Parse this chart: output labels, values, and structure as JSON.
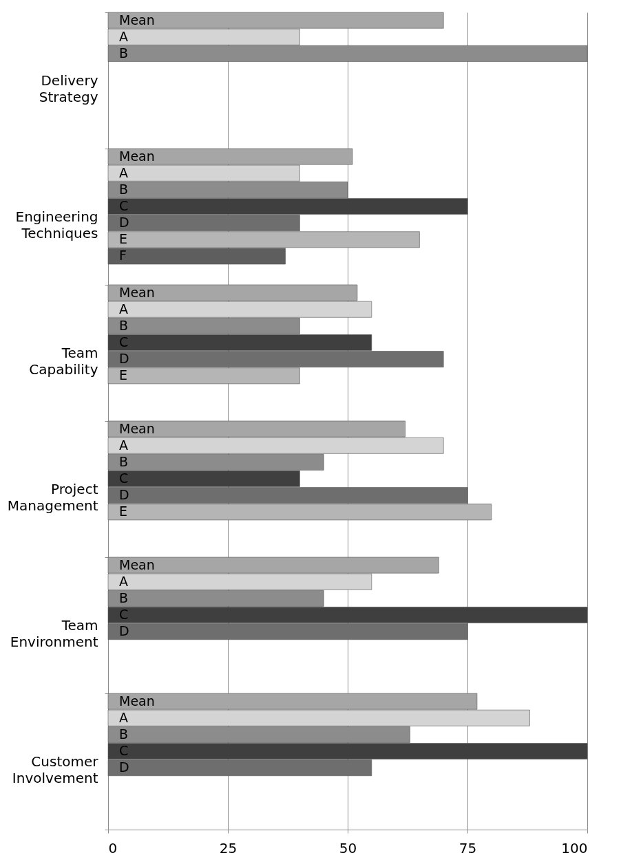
{
  "chart_data": {
    "type": "bar",
    "orientation": "horizontal",
    "categories": [
      "Delivery Strategy",
      "Engineering Techniques",
      "Team Capability",
      "Project Management",
      "Team Environment",
      "Customer Involvement"
    ],
    "series": [
      {
        "name": "Mean",
        "color": "#a6a6a6",
        "values": [
          70,
          51,
          52,
          62,
          69,
          77
        ]
      },
      {
        "name": "A",
        "color": "#d4d4d4",
        "values": [
          40,
          40,
          55,
          70,
          55,
          88
        ]
      },
      {
        "name": "B",
        "color": "#8c8c8c",
        "values": [
          100,
          50,
          40,
          45,
          45,
          63
        ]
      },
      {
        "name": "C",
        "color": "#3f3f3f",
        "values": [
          null,
          75,
          55,
          40,
          100,
          100
        ]
      },
      {
        "name": "D",
        "color": "#6e6e6e",
        "values": [
          null,
          40,
          70,
          75,
          75,
          55
        ]
      },
      {
        "name": "E",
        "color": "#b5b5b5",
        "values": [
          null,
          65,
          40,
          80,
          null,
          null
        ]
      },
      {
        "name": "F",
        "color": "#5e5e5e",
        "values": [
          null,
          37,
          null,
          null,
          null,
          null
        ]
      }
    ],
    "xlim": [
      0,
      100
    ],
    "xticks": [
      0,
      25,
      50,
      75,
      100
    ],
    "grid": "x",
    "legend": false
  }
}
